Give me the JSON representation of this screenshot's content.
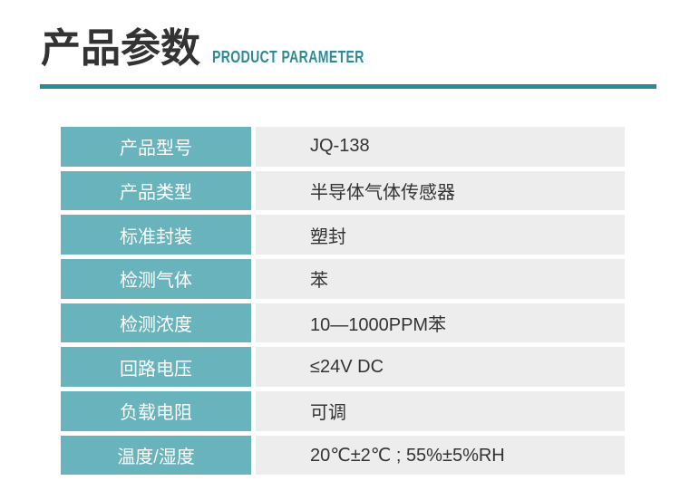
{
  "header": {
    "title": "产品参数",
    "subtitle": "PRODUCT PARAMETER"
  },
  "table": {
    "rows": [
      {
        "label": "产品型号",
        "value": "JQ-138"
      },
      {
        "label": "产品类型",
        "value": "半导体气体传感器"
      },
      {
        "label": "标准封装",
        "value": "塑封"
      },
      {
        "label": "检测气体",
        "value": "苯"
      },
      {
        "label": "检测浓度",
        "value": "10—1000PPM苯"
      },
      {
        "label": "回路电压",
        "value": "≤24V DC"
      },
      {
        "label": "负载电阻",
        "value": "可调"
      },
      {
        "label": "温度/湿度",
        "value": "20℃±2℃ ; 55%±5%RH"
      }
    ]
  },
  "colors": {
    "accent_teal": "#2e8a96",
    "label_cell_teal": "#68b3bc",
    "value_cell_gray": "#ededed",
    "title_text": "#333333",
    "value_text": "#333333",
    "label_text": "#ffffff"
  }
}
